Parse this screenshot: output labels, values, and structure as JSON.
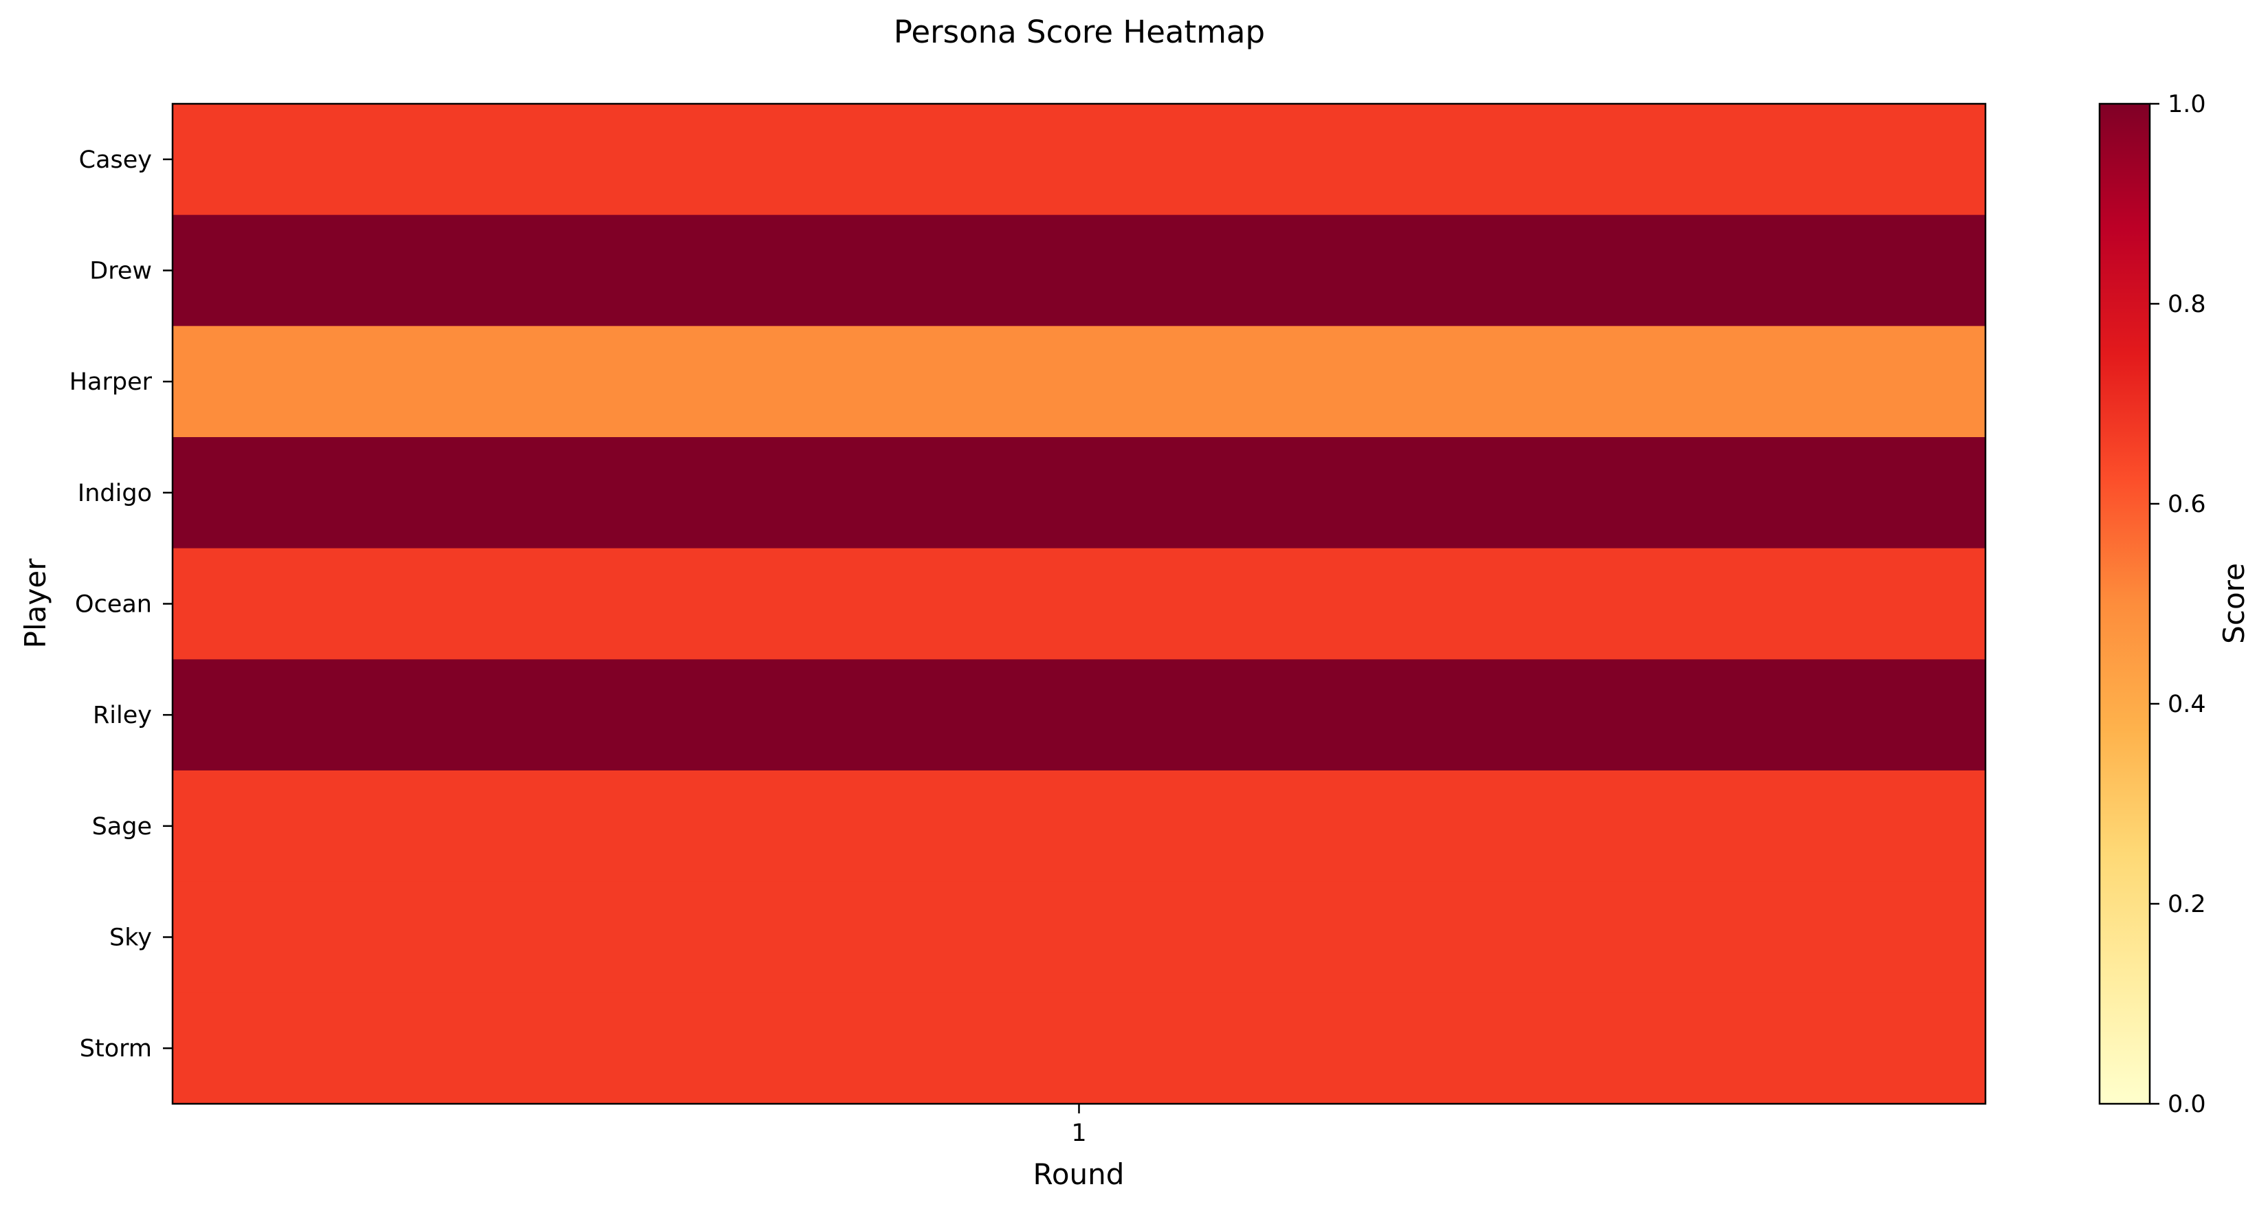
{
  "chart_data": {
    "type": "heatmap",
    "title": "Persona Score Heatmap",
    "xlabel": "Round",
    "ylabel": "Player",
    "x_categories": [
      "1"
    ],
    "y_categories": [
      "Casey",
      "Drew",
      "Harper",
      "Indigo",
      "Ocean",
      "Riley",
      "Sage",
      "Sky",
      "Storm"
    ],
    "values": [
      [
        0.67
      ],
      [
        1.0
      ],
      [
        0.5
      ],
      [
        1.0
      ],
      [
        0.67
      ],
      [
        1.0
      ],
      [
        0.67
      ],
      [
        0.67
      ],
      [
        0.67
      ]
    ],
    "colormap": "YlOrRd",
    "vmin": 0.0,
    "vmax": 1.0,
    "colorbar": {
      "label": "Score",
      "ticks": [
        0.0,
        0.2,
        0.4,
        0.6,
        0.8,
        1.0
      ],
      "tick_labels": [
        "0.0",
        "0.2",
        "0.4",
        "0.6",
        "0.8",
        "1.0"
      ]
    },
    "grid": false,
    "legend": "colorbar-right"
  }
}
